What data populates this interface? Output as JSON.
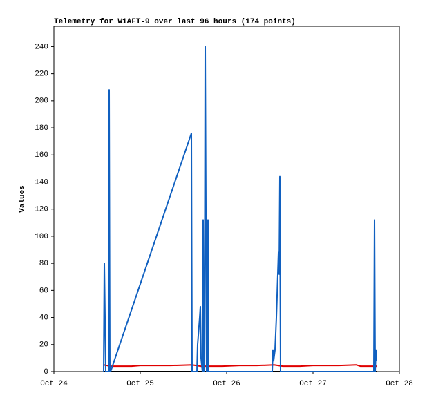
{
  "chart_data": {
    "type": "line",
    "title": "Telemetry for W1AFT-9 over last 96 hours (174 points)",
    "y_label": "Values",
    "xlim": [
      0,
      4
    ],
    "xticks": [
      {
        "value": 0,
        "label": "Oct 24"
      },
      {
        "value": 1,
        "label": "Oct 25"
      },
      {
        "value": 2,
        "label": "Oct 26"
      },
      {
        "value": 3,
        "label": "Oct 27"
      },
      {
        "value": 4,
        "label": "Oct 28"
      }
    ],
    "ylim": [
      0,
      255
    ],
    "yticks": [
      0,
      20,
      40,
      60,
      80,
      100,
      120,
      140,
      160,
      180,
      200,
      220,
      240
    ],
    "grid": false,
    "series": [
      {
        "color": "#000000",
        "x": [
          0.576,
          3.736
        ],
        "values": [
          0,
          0
        ]
      },
      {
        "color": "#e00000",
        "x": [
          0.576,
          0.656,
          0.9,
          1.0,
          1.35,
          1.6,
          1.7,
          1.95,
          2.15,
          2.35,
          2.55,
          2.65,
          2.85,
          3.0,
          3.3,
          3.5,
          3.55,
          3.736
        ],
        "values": [
          5,
          4,
          4,
          4.5,
          4.5,
          5,
          4,
          4,
          4.5,
          4.5,
          5,
          4,
          4,
          4.5,
          4.5,
          5,
          4,
          4
        ]
      },
      {
        "color": "#1060c0",
        "x": [
          0.576,
          0.584,
          0.592,
          0.6,
          0.632,
          0.64,
          0.648,
          0.656,
          1.592,
          1.6,
          1.656,
          1.664,
          1.688,
          1.696,
          1.704,
          1.72,
          1.728,
          1.736,
          1.744,
          1.752,
          1.76,
          1.768,
          1.776,
          1.784,
          1.792,
          2.528,
          2.536,
          2.544,
          2.56,
          2.576,
          2.592,
          2.6,
          2.608,
          2.616,
          2.624,
          3.704,
          3.712,
          3.72,
          3.728,
          3.736
        ],
        "values": [
          0,
          80,
          40,
          0,
          0,
          208,
          0,
          0,
          176,
          0,
          0,
          20,
          40,
          48,
          10,
          0,
          112,
          0,
          0,
          240,
          120,
          0,
          0,
          112,
          0,
          0,
          16,
          8,
          16,
          40,
          72,
          88,
          72,
          144,
          0,
          0,
          112,
          0,
          16,
          8
        ]
      }
    ]
  }
}
